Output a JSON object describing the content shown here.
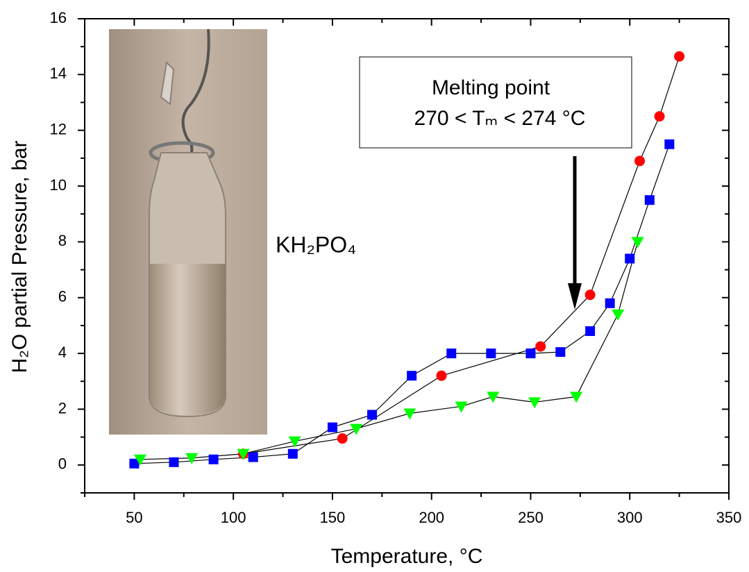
{
  "chart_data": {
    "type": "line",
    "xlabel": "Temperature, °C",
    "ylabel": "H₂O partial Pressure, bar",
    "annotations": [
      "Melting point",
      "270 < Tₘ < 274 °C",
      "KH₂PO₄"
    ],
    "xlim": [
      25,
      350
    ],
    "xticks": [
      50,
      100,
      150,
      200,
      250,
      300,
      350
    ],
    "xminorticks": [
      25,
      75,
      125,
      175,
      225,
      275,
      325
    ],
    "ylim": [
      -1,
      16
    ],
    "yticks": [
      0,
      2,
      4,
      6,
      8,
      10,
      12,
      14,
      16
    ],
    "yminorticks": [
      -1,
      1,
      3,
      5,
      7,
      9,
      11,
      13,
      15
    ],
    "line_color": "#000000",
    "series": [
      {
        "color": "#ff0000",
        "marker": "circle",
        "x": [
          105,
          155,
          205,
          255,
          280,
          305,
          315,
          325
        ],
        "values": [
          0.4,
          0.95,
          3.2,
          4.25,
          6.1,
          10.9,
          12.5,
          14.65
        ]
      },
      {
        "color": "#0000ff",
        "marker": "square",
        "x": [
          50,
          70,
          90,
          110,
          130,
          150,
          170,
          190,
          210,
          230,
          250,
          265,
          280,
          290,
          300,
          310,
          320
        ],
        "values": [
          0.05,
          0.1,
          0.2,
          0.28,
          0.4,
          1.35,
          1.8,
          3.2,
          4.0,
          4.0,
          4.0,
          4.05,
          4.8,
          5.8,
          7.4,
          9.5,
          11.5
        ]
      },
      {
        "color": "#00ff00",
        "marker": "triangle-down",
        "x": [
          53,
          79,
          105,
          131,
          162,
          189,
          215,
          231,
          252,
          273,
          294,
          304
        ],
        "values": [
          0.2,
          0.25,
          0.4,
          0.85,
          1.3,
          1.85,
          2.1,
          2.45,
          2.25,
          2.45,
          5.4,
          8.0
        ]
      }
    ]
  }
}
